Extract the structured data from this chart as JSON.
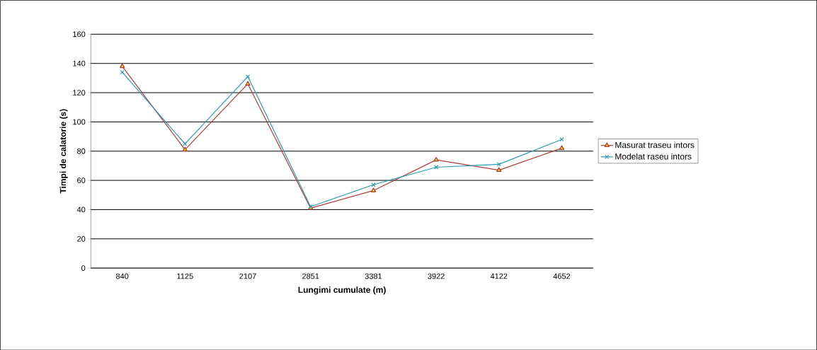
{
  "chart_data": {
    "type": "line",
    "xlabel": "Lungimi cumulate (m)",
    "ylabel": "Timpi de calatorie (s)",
    "categories": [
      "840",
      "1125",
      "2107",
      "2851",
      "3381",
      "3922",
      "4122",
      "4652"
    ],
    "series": [
      {
        "name": "Masurat traseu intors",
        "color": "#b03a3a",
        "marker": "triangle",
        "values": [
          138,
          81,
          126,
          41,
          53,
          74,
          67,
          82
        ]
      },
      {
        "name": "Modelat raseu intors",
        "color": "#2a9ab0",
        "marker": "cross",
        "values": [
          134,
          85,
          131,
          42,
          57,
          69,
          71,
          88
        ]
      }
    ],
    "ylim": [
      0,
      160
    ],
    "yticks": [
      0,
      20,
      40,
      60,
      80,
      100,
      120,
      140,
      160
    ],
    "grid": "y",
    "legend": "right"
  }
}
